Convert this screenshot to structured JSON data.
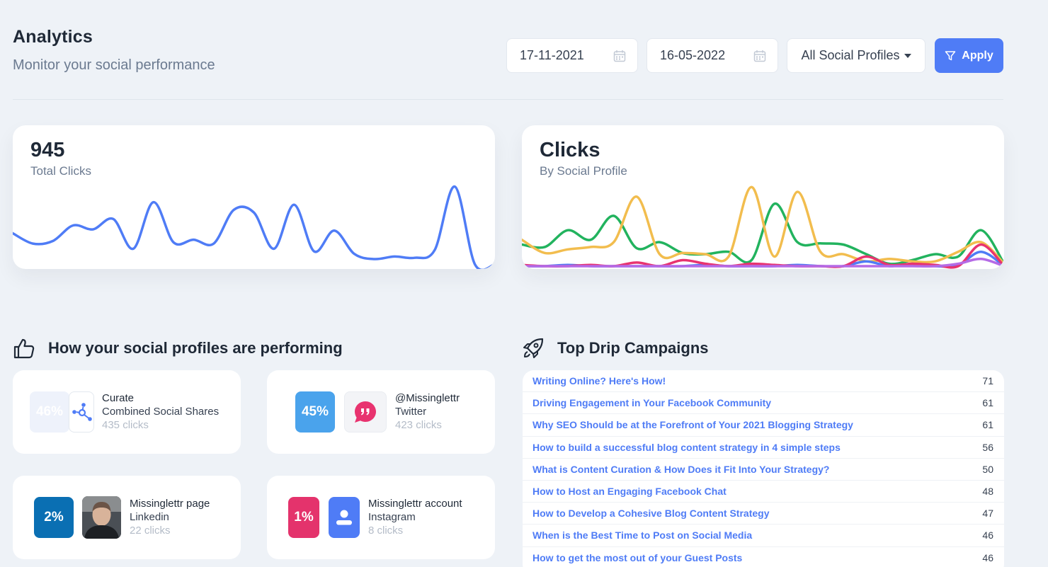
{
  "header": {
    "title": "Analytics",
    "subtitle": "Monitor your social performance"
  },
  "filters": {
    "start_date": "17-11-2021",
    "end_date": "16-05-2022",
    "profile_select": "All Social Profiles",
    "apply_label": "Apply"
  },
  "total_clicks": {
    "value": "945",
    "label": "Total Clicks"
  },
  "clicks_by_profile": {
    "title": "Clicks",
    "subtitle": "By Social Profile"
  },
  "colors": {
    "blue": "#4f7cf6",
    "green": "#22b35e",
    "yellow": "#f2bd4e",
    "pink": "#e8336f",
    "purple": "#b56be6",
    "accent": "#4f7cf6"
  },
  "chart_data": [
    {
      "type": "line",
      "series": [
        {
          "values": [
            26,
            18,
            20,
            32,
            29,
            37,
            14,
            50,
            19,
            21,
            18,
            44,
            42,
            14,
            48,
            12,
            28,
            10,
            6,
            8,
            7,
            13,
            62,
            2,
            2
          ]
        }
      ],
      "ylim": [
        0,
        70
      ]
    },
    {
      "type": "line",
      "series": [
        {
          "values": [
            18,
            16,
            30,
            22,
            42,
            15,
            20,
            11,
            10,
            12,
            5,
            52,
            20,
            19,
            18,
            10,
            2,
            5,
            10,
            8,
            30,
            2
          ]
        },
        {
          "values": [
            22,
            11,
            14,
            16,
            20,
            58,
            10,
            11,
            10,
            8,
            66,
            8,
            62,
            12,
            10,
            4,
            6,
            4,
            4,
            12,
            20,
            2
          ]
        },
        {
          "values": [
            0,
            0,
            1,
            0,
            0,
            0,
            0,
            0,
            1,
            0,
            0,
            0,
            1,
            0,
            0,
            4,
            0,
            2,
            0,
            1,
            12,
            0
          ]
        },
        {
          "values": [
            1,
            0,
            0,
            1,
            0,
            3,
            0,
            5,
            2,
            0,
            2,
            1,
            0,
            0,
            0,
            8,
            1,
            2,
            1,
            0,
            18,
            0
          ]
        },
        {
          "values": [
            0,
            0,
            0,
            0,
            0,
            0,
            0,
            0,
            0,
            0,
            0,
            0,
            0,
            0,
            0,
            0,
            0,
            0,
            0,
            2,
            6,
            0
          ]
        }
      ],
      "ylim": [
        0,
        75
      ]
    }
  ],
  "profiles_section": {
    "title": "How your social profiles are performing",
    "items": [
      {
        "percent": "46%",
        "name": "Curate",
        "platform": "Combined Social Shares",
        "clicks": "435 clicks",
        "icon": "share-nodes-icon"
      },
      {
        "percent": "45%",
        "name": "@Missinglettr",
        "platform": "Twitter",
        "clicks": "423 clicks",
        "icon": "quote-bubble-icon"
      },
      {
        "percent": "2%",
        "name": "Missinglettr page",
        "platform": "Linkedin",
        "clicks": "22 clicks",
        "icon": "user-photo"
      },
      {
        "percent": "1%",
        "name": "Missinglettr account",
        "platform": "Instagram",
        "clicks": "8 clicks",
        "icon": "user-icon"
      }
    ]
  },
  "campaigns_section": {
    "title": "Top Drip Campaigns",
    "rows": [
      {
        "title": "Writing Online? Here's How!",
        "count": "71"
      },
      {
        "title": "Driving Engagement in Your Facebook Community",
        "count": "61"
      },
      {
        "title": "Why SEO Should be at the Forefront of Your 2021 Blogging Strategy",
        "count": "61"
      },
      {
        "title": "How to build a successful blog content strategy in 4 simple steps",
        "count": "56"
      },
      {
        "title": "What is Content Curation & How Does it Fit Into Your Strategy?",
        "count": "50"
      },
      {
        "title": "How to Host an Engaging Facebook Chat",
        "count": "48"
      },
      {
        "title": "How to Develop a Cohesive Blog Content Strategy",
        "count": "47"
      },
      {
        "title": "When is the Best Time to Post on Social Media",
        "count": "46"
      },
      {
        "title": "How to get the most out of your Guest Posts",
        "count": "46"
      }
    ]
  }
}
